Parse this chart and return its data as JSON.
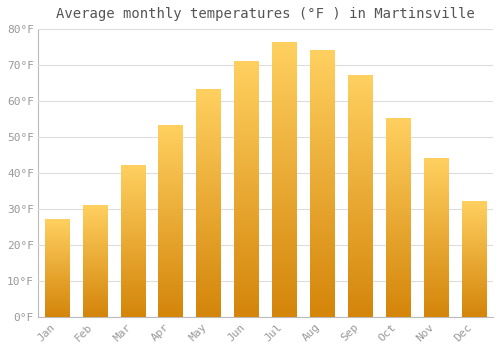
{
  "title": "Average monthly temperatures (°F ) in Martinsville",
  "months": [
    "Jan",
    "Feb",
    "Mar",
    "Apr",
    "May",
    "Jun",
    "Jul",
    "Aug",
    "Sep",
    "Oct",
    "Nov",
    "Dec"
  ],
  "values": [
    27,
    31,
    42,
    53,
    63,
    71,
    76,
    74,
    67,
    55,
    44,
    32
  ],
  "bar_color": "#FFA500",
  "bar_color_light": "#FFD060",
  "bar_color_dark": "#E8900A",
  "background_color": "#FFFFFF",
  "plot_bg_color": "#FFFFFF",
  "grid_color": "#DDDDDD",
  "text_color": "#999999",
  "title_color": "#555555",
  "ylim": [
    0,
    80
  ],
  "yticks": [
    0,
    10,
    20,
    30,
    40,
    50,
    60,
    70,
    80
  ],
  "ytick_labels": [
    "0°F",
    "10°F",
    "20°F",
    "30°F",
    "40°F",
    "50°F",
    "60°F",
    "70°F",
    "80°F"
  ],
  "title_fontsize": 10,
  "tick_fontsize": 8,
  "bar_width": 0.65
}
